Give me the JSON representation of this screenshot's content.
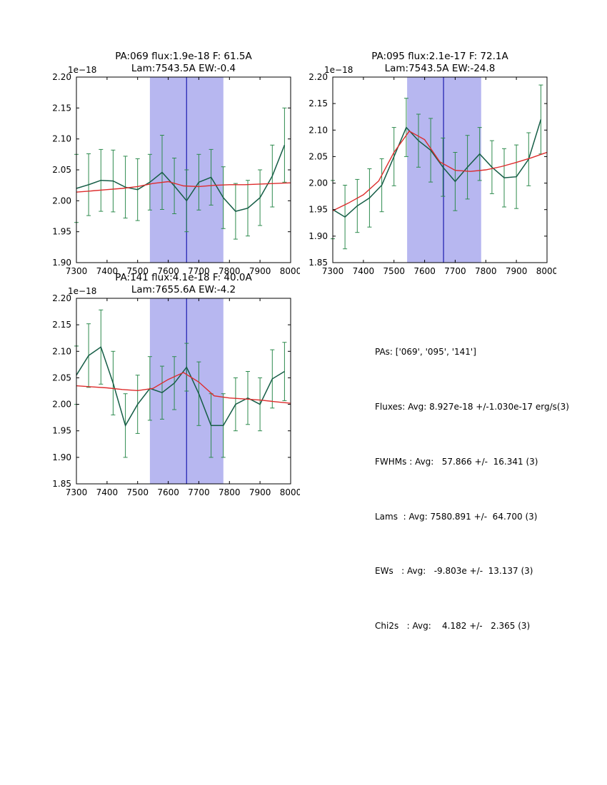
{
  "colors": {
    "data_line": "#155d46",
    "error_bar": "#2e8b4e",
    "fit_line": "#dd2c2c",
    "band": "#b7b7f0",
    "vline": "#3232b8",
    "axis": "#000000"
  },
  "chart_data": [
    {
      "type": "line",
      "title_line1": "PA:069 flux:1.9e-18 F: 61.5A",
      "title_line2": "Lam:7543.5A EW:-0.4",
      "offset_label": "1e−18",
      "xlim": [
        7300,
        8000
      ],
      "ylim": [
        1.9,
        2.2
      ],
      "xtick_labels": [
        "7300",
        "7400",
        "7500",
        "7600",
        "7700",
        "7800",
        "7900",
        "8000"
      ],
      "ytick_labels": [
        "1.90",
        "1.95",
        "2.00",
        "2.05",
        "2.10",
        "2.15",
        "2.20"
      ],
      "band": [
        7540,
        7780
      ],
      "vline": 7660,
      "data_x": [
        7300,
        7340,
        7380,
        7420,
        7460,
        7500,
        7540,
        7580,
        7620,
        7660,
        7700,
        7740,
        7780,
        7820,
        7860,
        7900,
        7940,
        7980
      ],
      "data_y": [
        2.02,
        2.026,
        2.033,
        2.032,
        2.022,
        2.018,
        2.03,
        2.046,
        2.024,
        2.0,
        2.03,
        2.038,
        2.005,
        1.983,
        1.988,
        2.005,
        2.04,
        2.09
      ],
      "data_yerr": [
        0.055,
        0.05,
        0.05,
        0.05,
        0.05,
        0.05,
        0.045,
        0.06,
        0.045,
        0.05,
        0.045,
        0.045,
        0.05,
        0.045,
        0.045,
        0.045,
        0.05,
        0.06
      ],
      "fit_x": [
        7300,
        7350,
        7400,
        7450,
        7500,
        7550,
        7600,
        7650,
        7700,
        7750,
        7800,
        7850,
        7900,
        7950,
        8000
      ],
      "fit_y": [
        2.014,
        2.016,
        2.018,
        2.02,
        2.023,
        2.028,
        2.031,
        2.024,
        2.023,
        2.025,
        2.026,
        2.026,
        2.027,
        2.028,
        2.029
      ]
    },
    {
      "type": "line",
      "title_line1": "PA:095 flux:2.1e-17 F: 72.1A",
      "title_line2": "Lam:7543.5A EW:-24.8",
      "offset_label": "1e−18",
      "xlim": [
        7300,
        8000
      ],
      "ylim": [
        1.85,
        2.2
      ],
      "xtick_labels": [
        "7300",
        "7400",
        "7500",
        "7600",
        "7700",
        "7800",
        "7900",
        "8000"
      ],
      "ytick_labels": [
        "1.85",
        "1.90",
        "1.95",
        "2.00",
        "2.05",
        "2.10",
        "2.15",
        "2.20"
      ],
      "band": [
        7543,
        7785
      ],
      "vline": 7662,
      "data_x": [
        7300,
        7340,
        7380,
        7420,
        7460,
        7500,
        7540,
        7580,
        7620,
        7660,
        7700,
        7740,
        7780,
        7820,
        7860,
        7900,
        7940,
        7980
      ],
      "data_y": [
        1.95,
        1.936,
        1.957,
        1.972,
        1.996,
        2.05,
        2.105,
        2.08,
        2.062,
        2.03,
        2.003,
        2.03,
        2.055,
        2.03,
        2.01,
        2.012,
        2.045,
        2.12
      ],
      "data_yerr": [
        0.055,
        0.06,
        0.05,
        0.055,
        0.05,
        0.055,
        0.055,
        0.05,
        0.06,
        0.055,
        0.055,
        0.06,
        0.05,
        0.05,
        0.055,
        0.06,
        0.05,
        0.065
      ],
      "fit_x": [
        7300,
        7350,
        7400,
        7450,
        7500,
        7550,
        7600,
        7650,
        7700,
        7750,
        7800,
        7850,
        7900,
        7950,
        8000
      ],
      "fit_y": [
        1.948,
        1.962,
        1.978,
        2.004,
        2.058,
        2.098,
        2.082,
        2.04,
        2.024,
        2.022,
        2.025,
        2.031,
        2.039,
        2.048,
        2.058
      ]
    },
    {
      "type": "line",
      "title_line1": "PA:141 flux:4.1e-18 F: 40.0A",
      "title_line2": "Lam:7655.6A EW:-4.2",
      "offset_label": "1e−18",
      "xlim": [
        7300,
        8000
      ],
      "ylim": [
        1.85,
        2.2
      ],
      "xtick_labels": [
        "7300",
        "7400",
        "7500",
        "7600",
        "7700",
        "7800",
        "7900",
        "8000"
      ],
      "ytick_labels": [
        "1.85",
        "1.90",
        "1.95",
        "2.00",
        "2.05",
        "2.10",
        "2.15",
        "2.20"
      ],
      "band": [
        7540,
        7780
      ],
      "vline": 7660,
      "data_x": [
        7300,
        7340,
        7380,
        7420,
        7460,
        7500,
        7540,
        7580,
        7620,
        7660,
        7700,
        7740,
        7780,
        7820,
        7860,
        7900,
        7940,
        7980
      ],
      "data_y": [
        2.055,
        2.092,
        2.108,
        2.04,
        1.96,
        2.0,
        2.03,
        2.022,
        2.04,
        2.07,
        2.02,
        1.96,
        1.96,
        2.0,
        2.012,
        2.0,
        2.048,
        2.062
      ],
      "data_yerr": [
        0.055,
        0.06,
        0.07,
        0.06,
        0.06,
        0.055,
        0.06,
        0.05,
        0.05,
        0.045,
        0.06,
        0.06,
        0.06,
        0.05,
        0.05,
        0.05,
        0.055,
        0.055
      ],
      "fit_x": [
        7300,
        7350,
        7400,
        7450,
        7500,
        7550,
        7600,
        7650,
        7700,
        7750,
        7800,
        7850,
        7900,
        7950,
        8000
      ],
      "fit_y": [
        2.035,
        2.033,
        2.031,
        2.028,
        2.026,
        2.03,
        2.047,
        2.06,
        2.042,
        2.016,
        2.012,
        2.01,
        2.008,
        2.005,
        2.002
      ]
    }
  ],
  "summary": {
    "lines": [
      "PAs: ['069', '095', '141']",
      "Fluxes: Avg: 8.927e-18 +/-1.030e-17 erg/s(3)",
      "FWHMs : Avg:   57.866 +/-  16.341 (3)",
      "Lams  : Avg: 7580.891 +/-  64.700 (3)",
      "EWs   : Avg:   -9.803e +/-  13.137 (3)",
      "Chi2s   : Avg:    4.182 +/-   2.365 (3)"
    ]
  }
}
